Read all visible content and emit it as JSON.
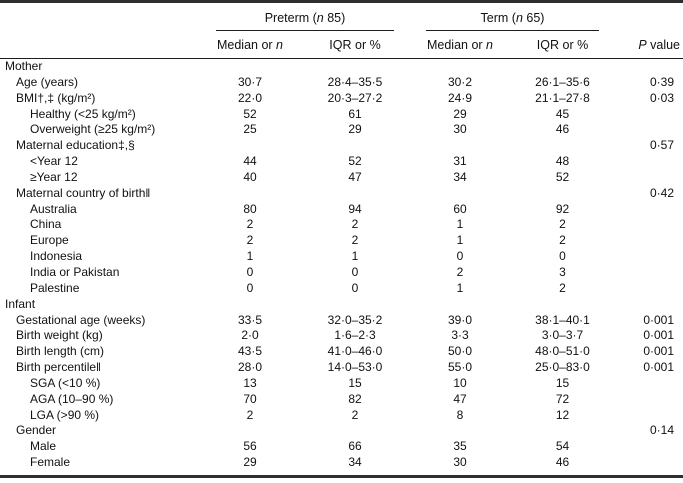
{
  "colors": {
    "background": "#ffffff",
    "text": "#111111",
    "rules": "#2e2e2e"
  },
  "table": {
    "header": {
      "groups": [
        {
          "prefix": "Preterm (",
          "italic": "n",
          "suffix": " 85)"
        },
        {
          "prefix": "Term (",
          "italic": "n",
          "suffix": " 65)"
        }
      ],
      "median_prefix": "Median or ",
      "median_italic": "n",
      "iqr_label": "IQR or %",
      "p_italic": "P",
      "p_suffix": " value"
    },
    "rows": [
      {
        "label": "Mother",
        "indent": 0,
        "preterm_median": "",
        "preterm_iqr": "",
        "term_median": "",
        "term_iqr": "",
        "p_value": ""
      },
      {
        "label": "Age (years)",
        "indent": 1,
        "preterm_median": "30·7",
        "preterm_iqr": "28·4–35·5",
        "term_median": "30·2",
        "term_iqr": "26·1–35·6",
        "p_value": "0·39"
      },
      {
        "label": "BMI†,‡ (kg/m²)",
        "indent": 1,
        "preterm_median": "22·0",
        "preterm_iqr": "20·3–27·2",
        "term_median": "24·9",
        "term_iqr": "21·1–27·8",
        "p_value": "0·03"
      },
      {
        "label": "Healthy (<25 kg/m²)",
        "indent": 2,
        "preterm_median": "52",
        "preterm_iqr": "61",
        "term_median": "29",
        "term_iqr": "45",
        "p_value": ""
      },
      {
        "label": "Overweight (≥25 kg/m²)",
        "indent": 2,
        "preterm_median": "25",
        "preterm_iqr": "29",
        "term_median": "30",
        "term_iqr": "46",
        "p_value": ""
      },
      {
        "label": "Maternal education‡,§",
        "indent": 1,
        "preterm_median": "",
        "preterm_iqr": "",
        "term_median": "",
        "term_iqr": "",
        "p_value": "0·57"
      },
      {
        "label": "<Year 12",
        "indent": 2,
        "preterm_median": "44",
        "preterm_iqr": "52",
        "term_median": "31",
        "term_iqr": "48",
        "p_value": ""
      },
      {
        "label": "≥Year 12",
        "indent": 2,
        "preterm_median": "40",
        "preterm_iqr": "47",
        "term_median": "34",
        "term_iqr": "52",
        "p_value": ""
      },
      {
        "label": "Maternal country of birth‖",
        "indent": 1,
        "preterm_median": "",
        "preterm_iqr": "",
        "term_median": "",
        "term_iqr": "",
        "p_value": "0·42"
      },
      {
        "label": "Australia",
        "indent": 2,
        "preterm_median": "80",
        "preterm_iqr": "94",
        "term_median": "60",
        "term_iqr": "92",
        "p_value": ""
      },
      {
        "label": "China",
        "indent": 2,
        "preterm_median": "2",
        "preterm_iqr": "2",
        "term_median": "1",
        "term_iqr": "2",
        "p_value": ""
      },
      {
        "label": "Europe",
        "indent": 2,
        "preterm_median": "2",
        "preterm_iqr": "2",
        "term_median": "1",
        "term_iqr": "2",
        "p_value": ""
      },
      {
        "label": "Indonesia",
        "indent": 2,
        "preterm_median": "1",
        "preterm_iqr": "1",
        "term_median": "0",
        "term_iqr": "0",
        "p_value": ""
      },
      {
        "label": "India or Pakistan",
        "indent": 2,
        "preterm_median": "0",
        "preterm_iqr": "0",
        "term_median": "2",
        "term_iqr": "3",
        "p_value": ""
      },
      {
        "label": "Palestine",
        "indent": 2,
        "preterm_median": "0",
        "preterm_iqr": "0",
        "term_median": "1",
        "term_iqr": "2",
        "p_value": ""
      },
      {
        "label": "Infant",
        "indent": 0,
        "preterm_median": "",
        "preterm_iqr": "",
        "term_median": "",
        "term_iqr": "",
        "p_value": ""
      },
      {
        "label": "Gestational age (weeks)",
        "indent": 1,
        "preterm_median": "33·5",
        "preterm_iqr": "32·0–35·2",
        "term_median": "39·0",
        "term_iqr": "38·1–40·1",
        "p_value": "0·001"
      },
      {
        "label": "Birth weight (kg)",
        "indent": 1,
        "preterm_median": "2·0",
        "preterm_iqr": "1·6–2·3",
        "term_median": "3·3",
        "term_iqr": "3·0–3·7",
        "p_value": "0·001"
      },
      {
        "label": "Birth length (cm)",
        "indent": 1,
        "preterm_median": "43·5",
        "preterm_iqr": "41·0–46·0",
        "term_median": "50·0",
        "term_iqr": "48·0–51·0",
        "p_value": "0·001"
      },
      {
        "label": "Birth percentile‖",
        "indent": 1,
        "preterm_median": "28·0",
        "preterm_iqr": "14·0–53·0",
        "term_median": "55·0",
        "term_iqr": "25·0–83·0",
        "p_value": "0·001"
      },
      {
        "label": "SGA (<10 %)",
        "indent": 2,
        "preterm_median": "13",
        "preterm_iqr": "15",
        "term_median": "10",
        "term_iqr": "15",
        "p_value": ""
      },
      {
        "label": "AGA (10–90 %)",
        "indent": 2,
        "preterm_median": "70",
        "preterm_iqr": "82",
        "term_median": "47",
        "term_iqr": "72",
        "p_value": ""
      },
      {
        "label": "LGA (>90 %)",
        "indent": 2,
        "preterm_median": "2",
        "preterm_iqr": "2",
        "term_median": "8",
        "term_iqr": "12",
        "p_value": ""
      },
      {
        "label": "Gender",
        "indent": 1,
        "preterm_median": "",
        "preterm_iqr": "",
        "term_median": "",
        "term_iqr": "",
        "p_value": "0·14"
      },
      {
        "label": "Male",
        "indent": 2,
        "preterm_median": "56",
        "preterm_iqr": "66",
        "term_median": "35",
        "term_iqr": "54",
        "p_value": ""
      },
      {
        "label": "Female",
        "indent": 2,
        "preterm_median": "29",
        "preterm_iqr": "34",
        "term_median": "30",
        "term_iqr": "46",
        "p_value": ""
      }
    ]
  }
}
